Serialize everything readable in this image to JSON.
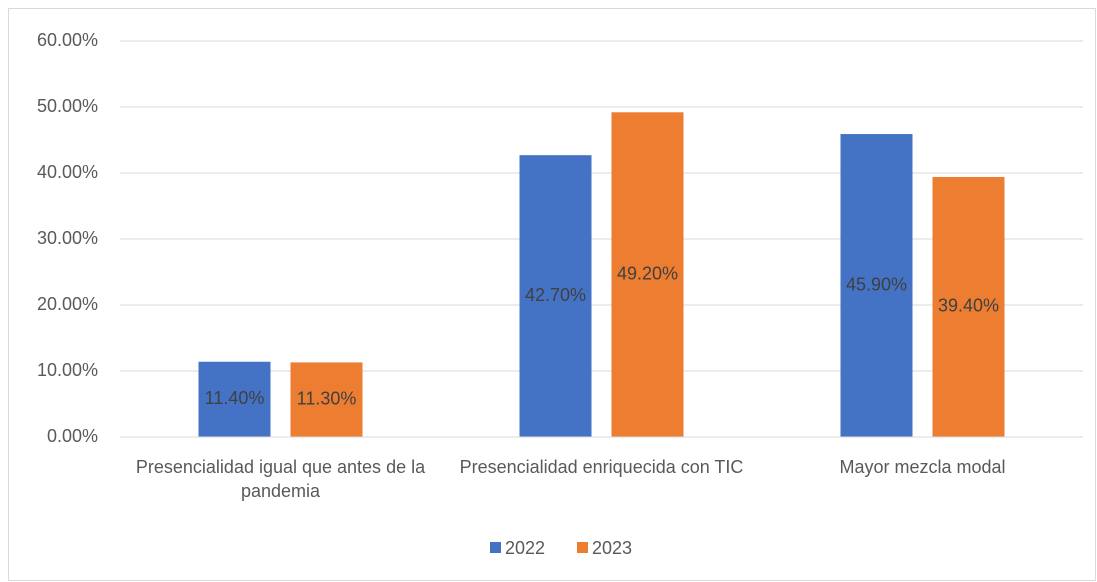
{
  "chart_data": {
    "type": "bar",
    "categories": [
      "Presencialidad igual que antes de la pandemia",
      "Presencialidad enriquecida con TIC",
      "Mayor mezcla modal"
    ],
    "series": [
      {
        "name": "2022",
        "color": "#4472c4",
        "values": [
          11.4,
          42.7,
          45.9
        ],
        "value_labels": [
          "11.40%",
          "42.70%",
          "45.90%"
        ]
      },
      {
        "name": "2023",
        "color": "#ed7d31",
        "values": [
          11.3,
          49.2,
          39.4
        ],
        "value_labels": [
          "11.30%",
          "49.20%",
          "39.40%"
        ]
      }
    ],
    "ylim": [
      0,
      60
    ],
    "yticks": [
      {
        "value": 0,
        "label": "0.00%"
      },
      {
        "value": 10,
        "label": "10.00%"
      },
      {
        "value": 20,
        "label": "20.00%"
      },
      {
        "value": 30,
        "label": "30.00%"
      },
      {
        "value": 40,
        "label": "40.00%"
      },
      {
        "value": 50,
        "label": "50.00%"
      },
      {
        "value": 60,
        "label": "60.00%"
      }
    ],
    "grid": true,
    "legend": "bottom"
  }
}
